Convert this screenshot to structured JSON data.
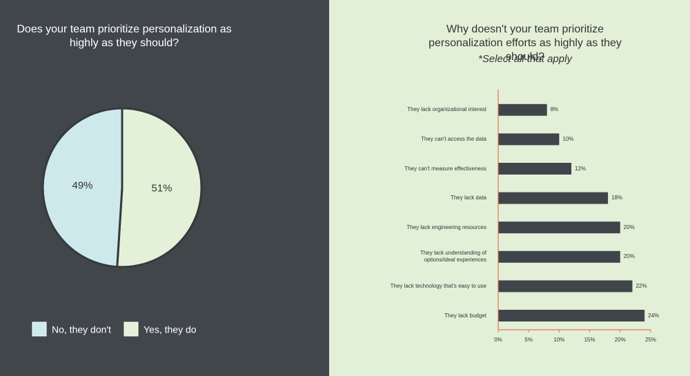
{
  "chart_data": [
    {
      "type": "pie",
      "title": "Does your team prioritize personalization as highly as they should?",
      "categories": [
        "No, they don't",
        "Yes, they do"
      ],
      "values": [
        49,
        51
      ],
      "value_labels": [
        "49%",
        "51%"
      ],
      "colors": [
        "#cde9ec",
        "#e4f1d9"
      ]
    },
    {
      "type": "bar",
      "title": "Why doesn't your team prioritize personalization efforts as highly as they should?",
      "subtitle": "*Select all that apply",
      "categories": [
        "They lack organizational interest",
        "They can't access the data",
        "They can't measure effectiveness",
        "They lack data",
        "They lack engineering resources",
        "They lack understanding of\noptions/ideal experiences",
        "They lack technology that's easy to use",
        "They lack budget"
      ],
      "values": [
        8,
        10,
        12,
        18,
        20,
        20,
        22,
        24
      ],
      "value_labels": [
        "8%",
        "10%",
        "12%",
        "18%",
        "20%",
        "20%",
        "22%",
        "24%"
      ],
      "color": "#3f454b",
      "xlim": [
        0,
        25
      ],
      "xticks": [
        {
          "value": 0,
          "label": "0%"
        },
        {
          "value": 5,
          "label": "5%"
        },
        {
          "value": 10,
          "label": "10%"
        },
        {
          "value": 15,
          "label": "15%"
        },
        {
          "value": 20,
          "label": "20%"
        },
        {
          "value": 25,
          "label": "25%"
        }
      ]
    }
  ]
}
